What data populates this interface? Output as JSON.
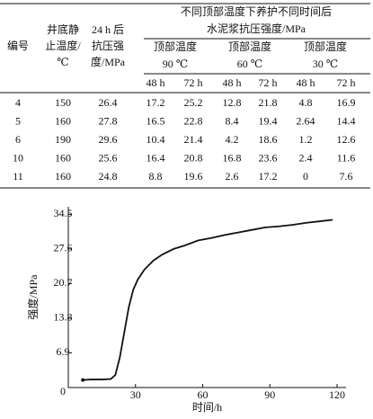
{
  "table": {
    "col_headers": [
      [
        "编号"
      ],
      [
        "井底静",
        "止温度/",
        "℃"
      ],
      [
        "24 h 后",
        "抗压强",
        "度/MPa"
      ]
    ],
    "group_title": [
      "不同顶部温度下养护不同时间后",
      "水泥浆抗压强度/MPa"
    ],
    "subgroups": [
      [
        "顶部温度",
        "90 ℃"
      ],
      [
        "顶部温度",
        "60 ℃"
      ],
      [
        "顶部温度",
        "30 ℃"
      ]
    ],
    "sub_headers": [
      "48 h",
      "72 h",
      "48 h",
      "72 h",
      "48 h",
      "72 h"
    ],
    "rows": [
      [
        4,
        150,
        26.4,
        17.2,
        25.2,
        12.8,
        21.8,
        4.8,
        16.9
      ],
      [
        5,
        160,
        27.8,
        16.5,
        22.8,
        8.4,
        19.4,
        2.64,
        14.4
      ],
      [
        6,
        190,
        29.6,
        10.4,
        21.4,
        4.2,
        18.6,
        1.2,
        12.6
      ],
      [
        10,
        160,
        25.6,
        16.4,
        20.8,
        16.8,
        23.6,
        2.4,
        11.6
      ],
      [
        11,
        160,
        24.8,
        8.8,
        19.6,
        2.6,
        17.2,
        0,
        7.6
      ]
    ]
  },
  "chart_data": {
    "type": "line",
    "xlabel": "时间/h",
    "ylabel": "强度/MPa",
    "x": [
      6.5,
      10,
      15,
      19,
      21,
      23,
      25,
      27,
      29,
      31,
      34,
      38,
      42,
      47,
      52,
      58,
      64,
      70,
      76,
      82,
      88,
      94,
      100,
      106,
      112,
      118
    ],
    "series": [
      {
        "color": "#111111",
        "values": [
          1.5,
          1.6,
          1.6,
          1.7,
          2.5,
          6,
          11,
          16,
          19.5,
          21.5,
          23.5,
          25.3,
          26.5,
          27.6,
          28.3,
          29.3,
          29.8,
          30.4,
          30.9,
          31.4,
          31.9,
          32.1,
          32.4,
          32.8,
          33.1,
          33.4
        ]
      }
    ],
    "xlim": [
      0,
      124
    ],
    "ylim": [
      0,
      36
    ],
    "xticks": [
      30,
      60,
      90,
      120
    ],
    "yticks": [
      0,
      6.9,
      13.8,
      20.7,
      27.6,
      34.5
    ]
  }
}
